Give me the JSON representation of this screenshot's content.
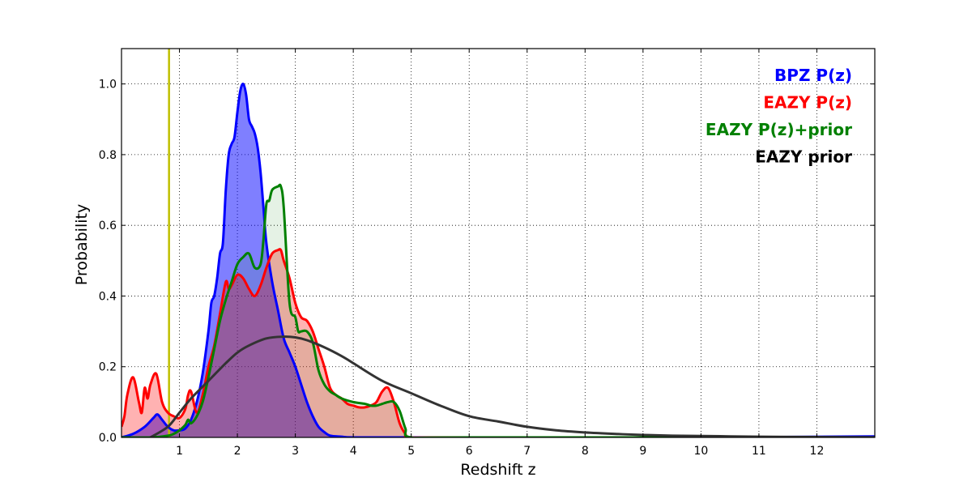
{
  "chart_data": {
    "type": "area",
    "xlabel": "Redshift z",
    "ylabel": "Probability",
    "xlim": [
      0,
      13
    ],
    "ylim": [
      0,
      1.1
    ],
    "xticks": [
      1,
      2,
      3,
      4,
      5,
      6,
      7,
      8,
      9,
      10,
      11,
      12
    ],
    "yticks": [
      0.0,
      0.2,
      0.4,
      0.6,
      0.8,
      1.0
    ],
    "ytick_labels": [
      "0.0",
      "0.2",
      "0.4",
      "0.6",
      "0.8",
      "1.0"
    ],
    "grid": true,
    "legend_position": "top-right",
    "vline": {
      "x": 0.82,
      "color": "#bfbf00"
    },
    "series": [
      {
        "name": "BPZ P(z)",
        "color": "#0000ff",
        "fill": "#0000ff",
        "fill_opacity": 0.5,
        "x": [
          0,
          0.2,
          0.4,
          0.55,
          0.62,
          0.7,
          0.8,
          0.9,
          1.0,
          1.1,
          1.2,
          1.3,
          1.4,
          1.5,
          1.55,
          1.6,
          1.65,
          1.7,
          1.75,
          1.8,
          1.85,
          1.9,
          1.95,
          2.0,
          2.05,
          2.1,
          2.15,
          2.2,
          2.25,
          2.3,
          2.35,
          2.4,
          2.45,
          2.5,
          2.6,
          2.7,
          2.8,
          2.9,
          3.0,
          3.1,
          3.2,
          3.3,
          3.4,
          3.5,
          3.6,
          3.8,
          4.0,
          5.0,
          7.0,
          10.0,
          13.0
        ],
        "y": [
          0.0,
          0.01,
          0.03,
          0.055,
          0.065,
          0.05,
          0.03,
          0.02,
          0.02,
          0.025,
          0.05,
          0.1,
          0.18,
          0.3,
          0.38,
          0.4,
          0.45,
          0.52,
          0.55,
          0.7,
          0.8,
          0.83,
          0.85,
          0.92,
          0.98,
          1.0,
          0.97,
          0.9,
          0.88,
          0.86,
          0.82,
          0.75,
          0.65,
          0.55,
          0.44,
          0.36,
          0.28,
          0.24,
          0.2,
          0.15,
          0.1,
          0.06,
          0.03,
          0.015,
          0.005,
          0.002,
          0.0,
          0.0,
          0.0,
          0.0,
          0.003
        ]
      },
      {
        "name": "EAZY P(z)",
        "color": "#ff0000",
        "fill": "#ff0000",
        "fill_opacity": 0.3,
        "x": [
          0,
          0.05,
          0.1,
          0.2,
          0.3,
          0.35,
          0.4,
          0.45,
          0.5,
          0.6,
          0.7,
          0.8,
          0.9,
          1.0,
          1.1,
          1.15,
          1.2,
          1.3,
          1.4,
          1.5,
          1.6,
          1.7,
          1.8,
          1.85,
          1.9,
          2.0,
          2.1,
          2.2,
          2.3,
          2.4,
          2.5,
          2.6,
          2.7,
          2.75,
          2.8,
          2.9,
          3.0,
          3.1,
          3.2,
          3.3,
          3.4,
          3.5,
          3.6,
          3.7,
          3.8,
          3.9,
          4.0,
          4.1,
          4.2,
          4.3,
          4.4,
          4.5,
          4.6,
          4.7,
          4.8,
          4.9,
          5.0,
          6.0,
          13.0
        ],
        "y": [
          0.03,
          0.06,
          0.12,
          0.17,
          0.1,
          0.07,
          0.14,
          0.11,
          0.15,
          0.18,
          0.1,
          0.07,
          0.06,
          0.055,
          0.08,
          0.12,
          0.13,
          0.07,
          0.12,
          0.2,
          0.26,
          0.35,
          0.44,
          0.42,
          0.43,
          0.46,
          0.45,
          0.42,
          0.4,
          0.43,
          0.48,
          0.52,
          0.53,
          0.53,
          0.5,
          0.45,
          0.38,
          0.34,
          0.33,
          0.3,
          0.25,
          0.2,
          0.14,
          0.12,
          0.11,
          0.095,
          0.09,
          0.085,
          0.085,
          0.09,
          0.1,
          0.13,
          0.14,
          0.1,
          0.04,
          0.01,
          0.0,
          0.0,
          0.0
        ]
      },
      {
        "name": "EAZY P(z)+prior",
        "color": "#008000",
        "fill": "#008000",
        "fill_opacity": 0.1,
        "x": [
          0,
          0.5,
          0.8,
          0.9,
          1.0,
          1.1,
          1.15,
          1.2,
          1.3,
          1.4,
          1.5,
          1.6,
          1.7,
          1.8,
          1.9,
          2.0,
          2.1,
          2.2,
          2.3,
          2.4,
          2.45,
          2.5,
          2.55,
          2.6,
          2.7,
          2.75,
          2.8,
          2.9,
          3.0,
          3.05,
          3.1,
          3.2,
          3.3,
          3.4,
          3.5,
          3.6,
          3.7,
          3.8,
          4.0,
          4.2,
          4.3,
          4.4,
          4.5,
          4.6,
          4.7,
          4.8,
          4.9,
          5.0,
          6.0,
          13.0
        ],
        "y": [
          0.0,
          0.0,
          0.005,
          0.01,
          0.02,
          0.035,
          0.05,
          0.04,
          0.06,
          0.1,
          0.17,
          0.25,
          0.33,
          0.39,
          0.44,
          0.49,
          0.51,
          0.52,
          0.48,
          0.49,
          0.56,
          0.66,
          0.67,
          0.7,
          0.71,
          0.71,
          0.65,
          0.38,
          0.34,
          0.3,
          0.3,
          0.3,
          0.27,
          0.19,
          0.15,
          0.13,
          0.12,
          0.11,
          0.1,
          0.095,
          0.09,
          0.09,
          0.095,
          0.1,
          0.1,
          0.075,
          0.025,
          0.0,
          0.0,
          0.0
        ]
      },
      {
        "name": "EAZY prior",
        "color": "#333333",
        "fill": "none",
        "fill_opacity": 0,
        "x": [
          0.5,
          0.8,
          1.0,
          1.2,
          1.5,
          1.8,
          2.0,
          2.2,
          2.5,
          2.8,
          3.0,
          3.2,
          3.5,
          3.8,
          4.0,
          4.5,
          5.0,
          5.5,
          6.0,
          6.5,
          7.0,
          7.5,
          8.0,
          8.5,
          9.0,
          9.5,
          10.0,
          10.5,
          11.0,
          11.5,
          12.0,
          12.5,
          13.0
        ],
        "y": [
          0.0,
          0.03,
          0.07,
          0.11,
          0.16,
          0.21,
          0.24,
          0.26,
          0.28,
          0.285,
          0.283,
          0.275,
          0.255,
          0.23,
          0.21,
          0.16,
          0.125,
          0.09,
          0.06,
          0.045,
          0.03,
          0.02,
          0.014,
          0.01,
          0.007,
          0.005,
          0.004,
          0.003,
          0.002,
          0.0015,
          0.001,
          0.0006,
          0.0004
        ]
      }
    ]
  }
}
